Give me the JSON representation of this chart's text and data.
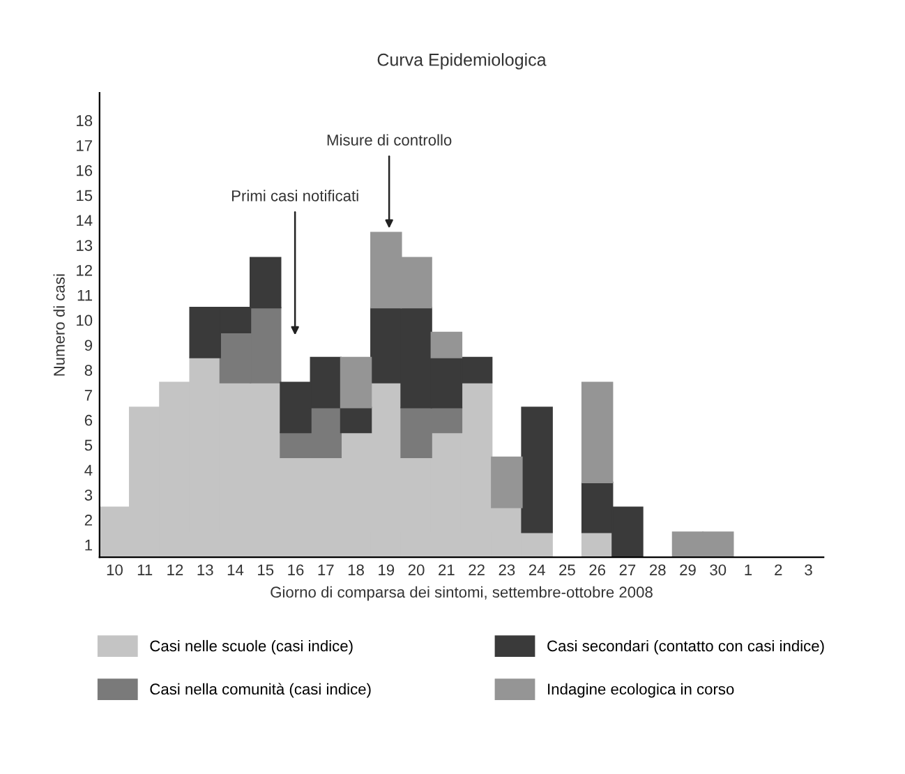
{
  "chart_data": {
    "type": "bar",
    "stacked": true,
    "title": "Curva Epidemiologica",
    "xlabel": "Giorno di comparsa dei sintomi, settembre-ottobre 2008",
    "ylabel": "Numero di casi",
    "categories": [
      "10",
      "11",
      "12",
      "13",
      "14",
      "15",
      "16",
      "17",
      "18",
      "19",
      "20",
      "21",
      "22",
      "23",
      "24",
      "25",
      "26",
      "27",
      "28",
      "29",
      "30",
      "1",
      "2",
      "3"
    ],
    "series": [
      {
        "name": "Casi nelle scuole (casi indice)",
        "color": "#c4c4c4",
        "values": [
          2,
          6,
          7,
          8,
          7,
          7,
          4,
          4,
          5,
          7,
          4,
          5,
          7,
          2,
          1,
          0,
          1,
          0,
          0,
          0,
          0,
          0,
          0,
          0
        ]
      },
      {
        "name": "Casi nella comunità (casi indice)",
        "color": "#7a7a7a",
        "values": [
          0,
          0,
          0,
          0,
          2,
          3,
          1,
          2,
          0,
          0,
          2,
          1,
          0,
          0,
          0,
          0,
          0,
          0,
          0,
          0,
          0,
          0,
          0,
          0
        ]
      },
      {
        "name": "Casi secondari (contatto con casi indice)",
        "color": "#3a3a3a",
        "values": [
          0,
          0,
          0,
          2,
          1,
          2,
          2,
          2,
          1,
          3,
          4,
          2,
          1,
          0,
          5,
          0,
          2,
          2,
          0,
          0,
          0,
          0,
          0,
          0
        ]
      },
      {
        "name": "Indagine ecologica in corso",
        "color": "#959595",
        "values": [
          0,
          0,
          0,
          0,
          0,
          0,
          0,
          0,
          2,
          3,
          2,
          1,
          0,
          2,
          0,
          0,
          4,
          0,
          0,
          1,
          1,
          0,
          0,
          0
        ]
      }
    ],
    "ylim": [
      0,
      18.6
    ],
    "yticks": [
      {
        "value": 0.5,
        "label": "1"
      },
      {
        "value": 1.5,
        "label": "2"
      },
      {
        "value": 2.5,
        "label": "3"
      },
      {
        "value": 3.5,
        "label": "4"
      },
      {
        "value": 4.5,
        "label": "5"
      },
      {
        "value": 5.5,
        "label": "6"
      },
      {
        "value": 6.5,
        "label": "7"
      },
      {
        "value": 7.5,
        "label": "8"
      },
      {
        "value": 8.5,
        "label": "9"
      },
      {
        "value": 9.5,
        "label": "10"
      },
      {
        "value": 10.5,
        "label": "11"
      },
      {
        "value": 11.5,
        "label": "12"
      },
      {
        "value": 12.5,
        "label": "13"
      },
      {
        "value": 13.5,
        "label": "14"
      },
      {
        "value": 14.5,
        "label": "15"
      },
      {
        "value": 15.5,
        "label": "16"
      },
      {
        "value": 16.5,
        "label": "17"
      },
      {
        "value": 17.5,
        "label": "18"
      }
    ],
    "annotations": [
      "Primi casi notificati",
      "Misure di controllo"
    ],
    "legend": "bottom",
    "grid": false
  }
}
